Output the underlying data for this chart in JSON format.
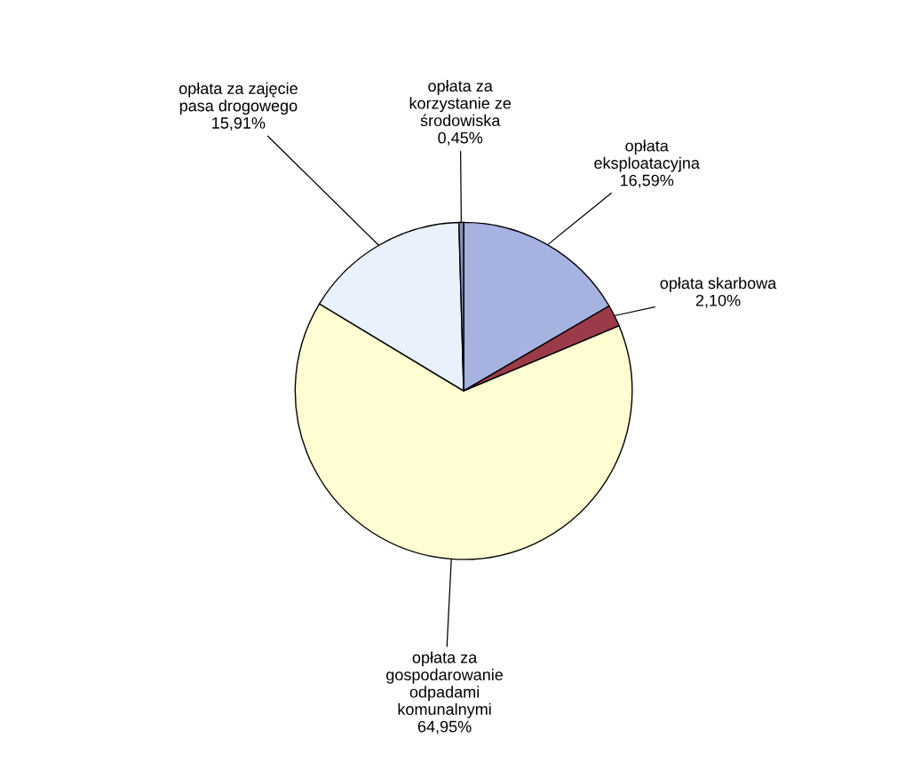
{
  "chart_data": {
    "type": "pie",
    "categories": [
      "opłata\neksploatacyjna",
      "opłata skarbowa",
      "opłata za\ngospodarowanie\nodpadami\nkomunalnymi",
      "opłata za zajęcie\npasa drogowego",
      "opłata za\nkorzystanie ze\nśrodowiska"
    ],
    "values": [
      16.59,
      2.1,
      64.95,
      15.91,
      0.45
    ],
    "value_labels": [
      "16,59%",
      "2,10%",
      "64,95%",
      "15,91%",
      "0,45%"
    ],
    "colors": [
      "#a6b2e0",
      "#9b3a48",
      "#fffdd2",
      "#e9f1fc",
      "#8890b8"
    ],
    "legend": false
  }
}
